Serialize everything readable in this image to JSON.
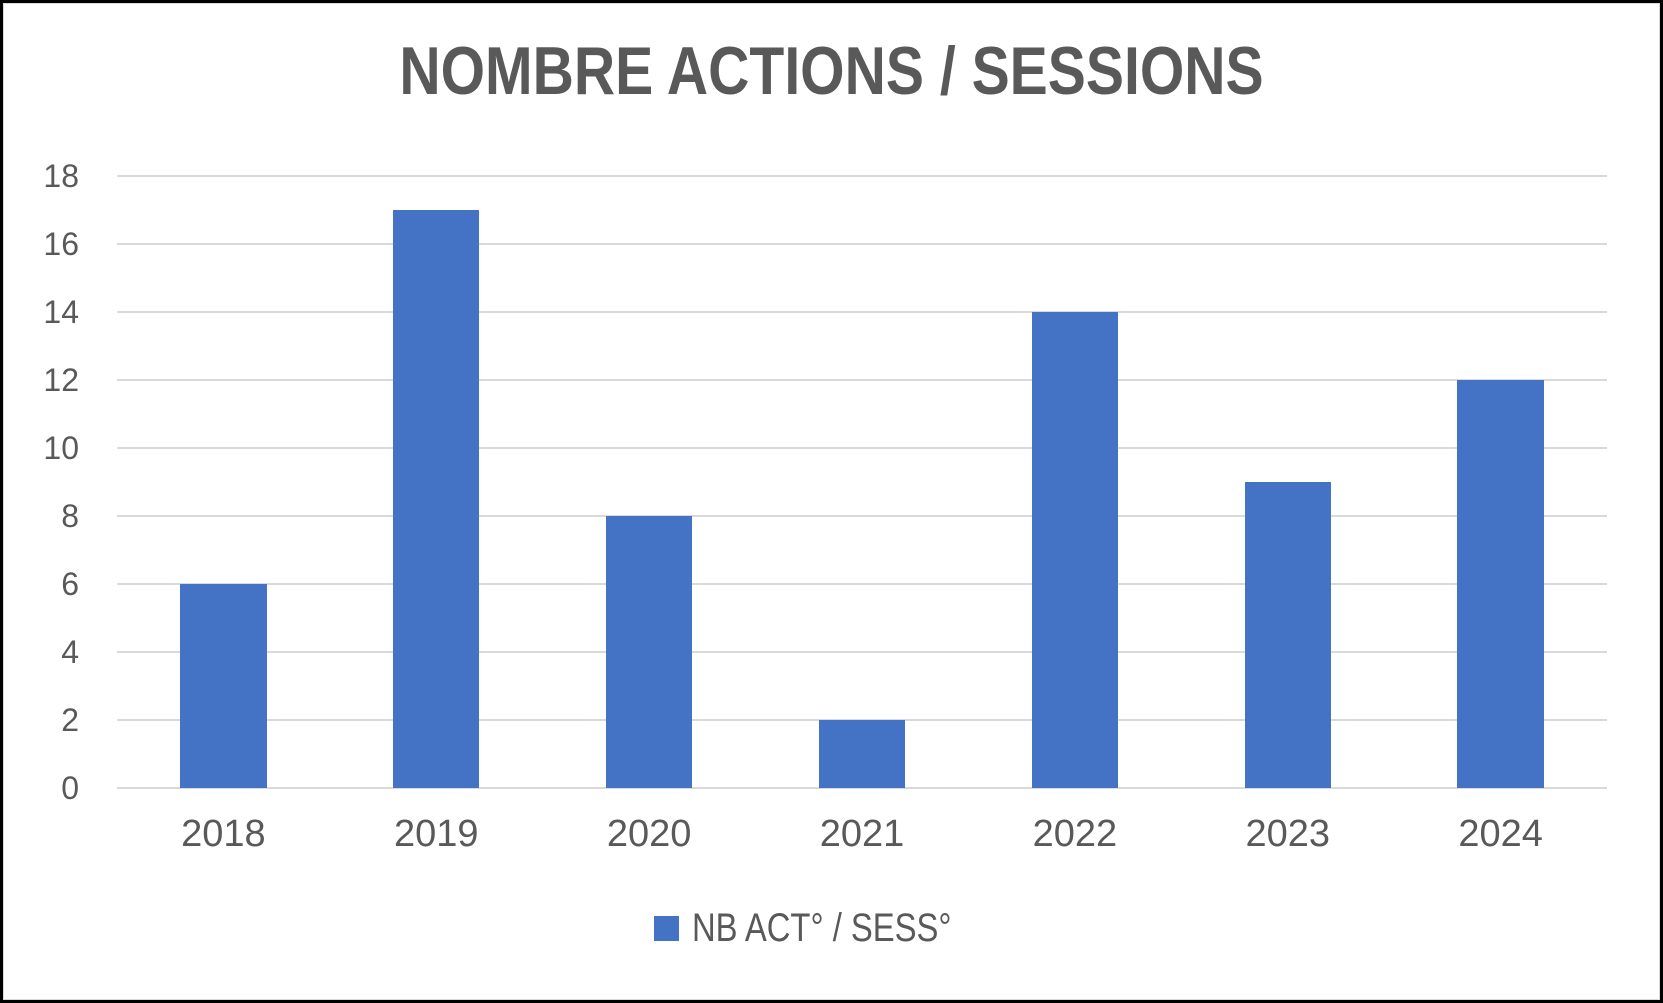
{
  "chart_data": {
    "type": "bar",
    "title": "NOMBRE ACTIONS / SESSIONS",
    "categories": [
      "2018",
      "2019",
      "2020",
      "2021",
      "2022",
      "2023",
      "2024"
    ],
    "series": [
      {
        "name": "NB ACT° / SESS°",
        "values": [
          6,
          17,
          8,
          2,
          14,
          9,
          12
        ]
      }
    ],
    "xlabel": "",
    "ylabel": "",
    "ylim": [
      0,
      18
    ],
    "ytick_step": 2,
    "grid": "horizontal",
    "legend_position": "bottom",
    "colors": {
      "bar": "#4472C4",
      "gridline": "#D9D9D9",
      "text": "#595959",
      "frame_border": "#000000",
      "frame_inner_line": "#D9D9D9"
    }
  }
}
